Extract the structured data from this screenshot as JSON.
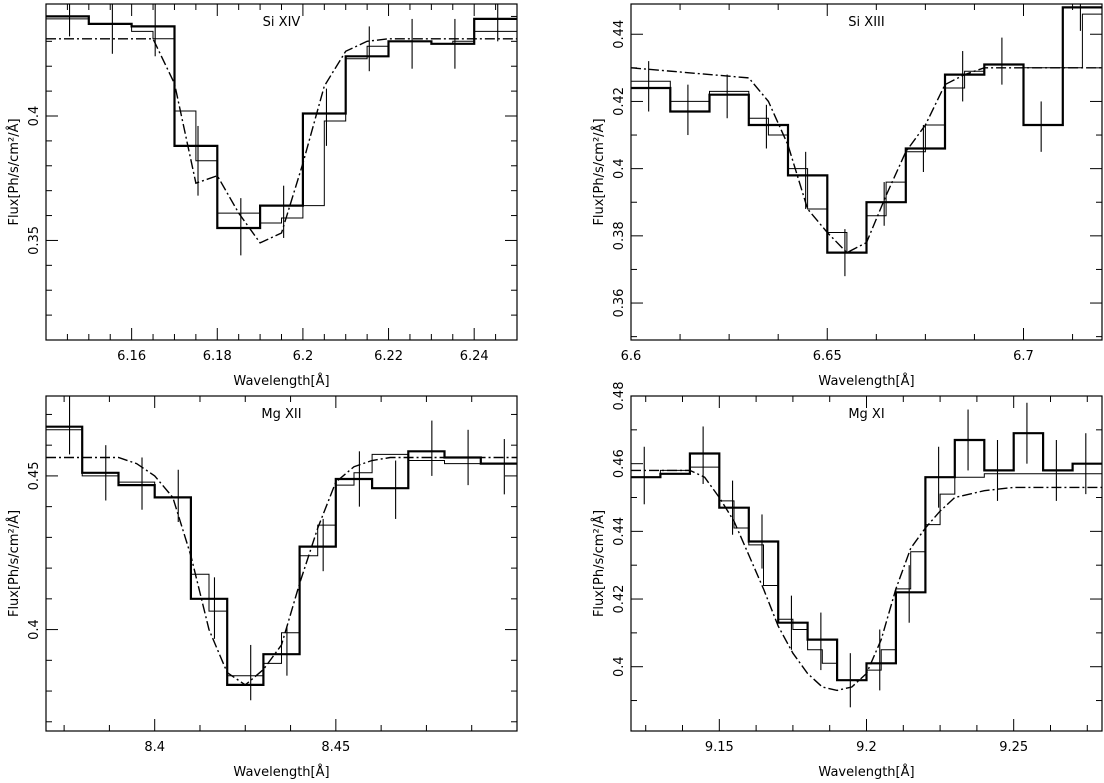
{
  "chart_data": [
    {
      "type": "line",
      "title": "Si XIV",
      "xlabel": "Wavelength[Å]",
      "ylabel": "Flux[Ph/s/cm²/Å]",
      "xlim": [
        6.14,
        6.25
      ],
      "ylim": [
        0.31,
        0.445
      ],
      "xticks": [
        6.16,
        6.18,
        6.2,
        6.22,
        6.24
      ],
      "xtick_labels": [
        "6.16",
        "6.18",
        "6.2",
        "6.22",
        "6.24"
      ],
      "yticks": [
        0.35,
        0.4
      ],
      "ytick_labels": [
        "0.35",
        "0.4"
      ],
      "series": [
        {
          "style": "dash-dot",
          "x": [
            6.14,
            6.165,
            6.17,
            6.175,
            6.18,
            6.185,
            6.19,
            6.195,
            6.2,
            6.205,
            6.21,
            6.215,
            6.22,
            6.25
          ],
          "y": [
            0.431,
            0.431,
            0.413,
            0.373,
            0.376,
            0.361,
            0.349,
            0.353,
            0.381,
            0.412,
            0.426,
            0.43,
            0.431,
            0.431
          ]
        },
        {
          "style": "thin-step",
          "x": [
            6.14,
            6.145,
            6.15,
            6.155,
            6.16,
            6.165,
            6.17,
            6.175,
            6.18,
            6.185,
            6.19,
            6.195,
            6.2,
            6.205,
            6.21,
            6.215,
            6.22,
            6.225,
            6.23,
            6.235,
            6.24,
            6.25
          ],
          "y": [
            0.439,
            0.439,
            0.437,
            0.437,
            0.434,
            0.431,
            0.402,
            0.382,
            0.361,
            0.361,
            0.357,
            0.359,
            0.364,
            0.398,
            0.423,
            0.428,
            0.43,
            0.43,
            0.429,
            0.43,
            0.434,
            0.434
          ]
        },
        {
          "style": "thick-step",
          "x": [
            6.14,
            6.15,
            6.16,
            6.17,
            6.18,
            6.19,
            6.2,
            6.21,
            6.22,
            6.23,
            6.24,
            6.25
          ],
          "y": [
            0.44,
            0.437,
            0.436,
            0.388,
            0.355,
            0.364,
            0.401,
            0.424,
            0.43,
            0.429,
            0.439,
            0.439
          ]
        }
      ],
      "errorbars": [
        {
          "x": 6.1455,
          "ylo": 0.432,
          "yhi": 0.447
        },
        {
          "x": 6.1555,
          "ylo": 0.425,
          "yhi": 0.447
        },
        {
          "x": 6.1655,
          "ylo": 0.424,
          "yhi": 0.446
        },
        {
          "x": 6.1755,
          "ylo": 0.368,
          "yhi": 0.396
        },
        {
          "x": 6.1855,
          "ylo": 0.344,
          "yhi": 0.367
        },
        {
          "x": 6.1955,
          "ylo": 0.351,
          "yhi": 0.372
        },
        {
          "x": 6.2055,
          "ylo": 0.388,
          "yhi": 0.411
        },
        {
          "x": 6.2155,
          "ylo": 0.418,
          "yhi": 0.436
        },
        {
          "x": 6.2255,
          "ylo": 0.419,
          "yhi": 0.439
        },
        {
          "x": 6.2355,
          "ylo": 0.419,
          "yhi": 0.439
        },
        {
          "x": 6.2455,
          "ylo": 0.43,
          "yhi": 0.447
        }
      ]
    },
    {
      "type": "line",
      "title": "Si XIII",
      "xlabel": "Wavelength[Å]",
      "ylabel": "Flux[Ph/s/cm²/Å]",
      "xlim": [
        6.6,
        6.72
      ],
      "ylim": [
        0.349,
        0.449
      ],
      "xticks": [
        6.6,
        6.65,
        6.7
      ],
      "xtick_labels": [
        "6.6",
        "6.65",
        "6.7"
      ],
      "yticks": [
        0.36,
        0.38,
        0.4,
        0.42,
        0.44
      ],
      "ytick_labels": [
        "0.36",
        "0.38",
        "0.4",
        "0.42",
        "0.44"
      ],
      "series": [
        {
          "style": "dash-dot",
          "x": [
            6.6,
            6.63,
            6.635,
            6.64,
            6.645,
            6.65,
            6.655,
            6.66,
            6.665,
            6.67,
            6.675,
            6.68,
            6.685,
            6.69,
            6.72
          ],
          "y": [
            0.43,
            0.427,
            0.42,
            0.407,
            0.388,
            0.381,
            0.375,
            0.378,
            0.392,
            0.405,
            0.413,
            0.425,
            0.428,
            0.43,
            0.43
          ]
        },
        {
          "style": "thin-step",
          "x": [
            6.6,
            6.605,
            6.61,
            6.615,
            6.62,
            6.625,
            6.63,
            6.635,
            6.64,
            6.645,
            6.65,
            6.655,
            6.66,
            6.665,
            6.67,
            6.675,
            6.68,
            6.685,
            6.69,
            6.695,
            6.7,
            6.71,
            6.715,
            6.72
          ],
          "y": [
            0.426,
            0.426,
            0.42,
            0.42,
            0.423,
            0.423,
            0.415,
            0.41,
            0.4,
            0.388,
            0.381,
            0.375,
            0.386,
            0.396,
            0.405,
            0.413,
            0.424,
            0.429,
            0.431,
            0.431,
            0.43,
            0.43,
            0.446,
            0.446
          ]
        },
        {
          "style": "thick-step",
          "x": [
            6.6,
            6.61,
            6.62,
            6.63,
            6.64,
            6.65,
            6.66,
            6.67,
            6.68,
            6.69,
            6.7,
            6.71,
            6.72
          ],
          "y": [
            0.424,
            0.417,
            0.422,
            0.413,
            0.398,
            0.375,
            0.39,
            0.406,
            0.428,
            0.431,
            0.413,
            0.448,
            0.448
          ]
        }
      ],
      "errorbars": [
        {
          "x": 6.6045,
          "ylo": 0.417,
          "yhi": 0.432
        },
        {
          "x": 6.6145,
          "ylo": 0.41,
          "yhi": 0.425
        },
        {
          "x": 6.6245,
          "ylo": 0.415,
          "yhi": 0.428
        },
        {
          "x": 6.6345,
          "ylo": 0.406,
          "yhi": 0.419
        },
        {
          "x": 6.6445,
          "ylo": 0.388,
          "yhi": 0.405
        },
        {
          "x": 6.6545,
          "ylo": 0.368,
          "yhi": 0.382
        },
        {
          "x": 6.6645,
          "ylo": 0.383,
          "yhi": 0.396
        },
        {
          "x": 6.6745,
          "ylo": 0.399,
          "yhi": 0.413
        },
        {
          "x": 6.6845,
          "ylo": 0.42,
          "yhi": 0.435
        },
        {
          "x": 6.6945,
          "ylo": 0.425,
          "yhi": 0.439
        },
        {
          "x": 6.7045,
          "ylo": 0.405,
          "yhi": 0.42
        },
        {
          "x": 6.7145,
          "ylo": 0.441,
          "yhi": 0.45
        }
      ]
    },
    {
      "type": "line",
      "title": "Mg XII",
      "xlabel": "Wavelength[Å]",
      "ylabel": "Flux[Ph/s/cm²/Å]",
      "xlim": [
        8.37,
        8.5
      ],
      "ylim": [
        0.367,
        0.476
      ],
      "xticks": [
        8.4,
        8.45
      ],
      "xtick_labels": [
        "8.4",
        "8.45"
      ],
      "yticks": [
        0.4,
        0.45
      ],
      "ytick_labels": [
        "0.4",
        "0.45"
      ],
      "series": [
        {
          "style": "dash-dot",
          "x": [
            8.37,
            8.385,
            8.39,
            8.395,
            8.4,
            8.405,
            8.41,
            8.415,
            8.42,
            8.425,
            8.43,
            8.435,
            8.44,
            8.445,
            8.45,
            8.455,
            8.46,
            8.465,
            8.5
          ],
          "y": [
            0.456,
            0.456,
            0.456,
            0.454,
            0.45,
            0.443,
            0.424,
            0.4,
            0.386,
            0.382,
            0.387,
            0.395,
            0.415,
            0.433,
            0.448,
            0.453,
            0.455,
            0.456,
            0.456
          ]
        },
        {
          "style": "thin-step",
          "x": [
            8.37,
            8.375,
            8.38,
            8.385,
            8.39,
            8.395,
            8.4,
            8.405,
            8.41,
            8.415,
            8.42,
            8.425,
            8.43,
            8.435,
            8.44,
            8.445,
            8.45,
            8.455,
            8.46,
            8.465,
            8.47,
            8.475,
            8.48,
            8.485,
            8.49,
            8.5
          ],
          "y": [
            0.465,
            0.465,
            0.45,
            0.45,
            0.448,
            0.448,
            0.443,
            0.443,
            0.418,
            0.406,
            0.385,
            0.385,
            0.389,
            0.399,
            0.424,
            0.434,
            0.447,
            0.451,
            0.457,
            0.457,
            0.455,
            0.455,
            0.454,
            0.454,
            0.454,
            0.454
          ]
        },
        {
          "style": "thick-step",
          "x": [
            8.37,
            8.38,
            8.39,
            8.4,
            8.41,
            8.42,
            8.43,
            8.44,
            8.45,
            8.46,
            8.47,
            8.48,
            8.49,
            8.5
          ],
          "y": [
            0.466,
            0.451,
            0.447,
            0.443,
            0.41,
            0.382,
            0.392,
            0.427,
            0.449,
            0.446,
            0.458,
            0.456,
            0.454,
            0.454
          ]
        }
      ],
      "errorbars": [
        {
          "x": 8.3765,
          "ylo": 0.457,
          "yhi": 0.476
        },
        {
          "x": 8.3865,
          "ylo": 0.442,
          "yhi": 0.46
        },
        {
          "x": 8.3965,
          "ylo": 0.439,
          "yhi": 0.456
        },
        {
          "x": 8.4065,
          "ylo": 0.435,
          "yhi": 0.452
        },
        {
          "x": 8.4165,
          "ylo": 0.397,
          "yhi": 0.417
        },
        {
          "x": 8.4265,
          "ylo": 0.377,
          "yhi": 0.395
        },
        {
          "x": 8.4365,
          "ylo": 0.385,
          "yhi": 0.401
        },
        {
          "x": 8.4465,
          "ylo": 0.419,
          "yhi": 0.436
        },
        {
          "x": 8.4565,
          "ylo": 0.44,
          "yhi": 0.458
        },
        {
          "x": 8.4665,
          "ylo": 0.436,
          "yhi": 0.455
        },
        {
          "x": 8.4765,
          "ylo": 0.45,
          "yhi": 0.468
        },
        {
          "x": 8.4865,
          "ylo": 0.447,
          "yhi": 0.465
        },
        {
          "x": 8.4965,
          "ylo": 0.444,
          "yhi": 0.462
        }
      ]
    },
    {
      "type": "line",
      "title": "Mg XI",
      "xlabel": "Wavelength[Å]",
      "ylabel": "Flux[Ph/s/cm²/Å]",
      "xlim": [
        9.12,
        9.28
      ],
      "ylim": [
        0.381,
        0.48
      ],
      "xticks": [
        9.15,
        9.2,
        9.25
      ],
      "xtick_labels": [
        "9.15",
        "9.2",
        "9.25"
      ],
      "yticks": [
        0.4,
        0.42,
        0.44,
        0.46,
        0.48
      ],
      "ytick_labels": [
        "0.4",
        "0.42",
        "0.44",
        "0.46",
        "0.48"
      ],
      "series": [
        {
          "style": "dash-dot",
          "x": [
            9.12,
            9.14,
            9.145,
            9.15,
            9.155,
            9.16,
            9.165,
            9.17,
            9.175,
            9.18,
            9.185,
            9.19,
            9.195,
            9.2,
            9.205,
            9.21,
            9.215,
            9.22,
            9.225,
            9.23,
            9.24,
            9.25,
            9.28
          ],
          "y": [
            0.458,
            0.458,
            0.456,
            0.45,
            0.443,
            0.433,
            0.423,
            0.412,
            0.404,
            0.398,
            0.394,
            0.393,
            0.394,
            0.398,
            0.408,
            0.423,
            0.435,
            0.441,
            0.446,
            0.45,
            0.452,
            0.453,
            0.453
          ]
        },
        {
          "style": "thin-step",
          "x": [
            9.12,
            9.125,
            9.13,
            9.135,
            9.14,
            9.145,
            9.15,
            9.155,
            9.16,
            9.165,
            9.17,
            9.175,
            9.18,
            9.185,
            9.19,
            9.195,
            9.2,
            9.205,
            9.21,
            9.215,
            9.22,
            9.225,
            9.23,
            9.235,
            9.24,
            9.245,
            9.25,
            9.28
          ],
          "y": [
            0.456,
            0.456,
            0.458,
            0.458,
            0.459,
            0.459,
            0.449,
            0.441,
            0.436,
            0.424,
            0.414,
            0.411,
            0.405,
            0.401,
            0.396,
            0.396,
            0.399,
            0.405,
            0.423,
            0.434,
            0.442,
            0.451,
            0.456,
            0.456,
            0.457,
            0.457,
            0.457,
            0.457
          ]
        },
        {
          "style": "thick-step",
          "x": [
            9.12,
            9.13,
            9.14,
            9.15,
            9.16,
            9.17,
            9.18,
            9.19,
            9.2,
            9.21,
            9.22,
            9.23,
            9.24,
            9.25,
            9.26,
            9.27,
            9.28
          ],
          "y": [
            0.456,
            0.457,
            0.463,
            0.447,
            0.437,
            0.413,
            0.408,
            0.396,
            0.401,
            0.422,
            0.456,
            0.467,
            0.458,
            0.469,
            0.458,
            0.46,
            0.46
          ]
        }
      ],
      "errorbars": [
        {
          "x": 9.1245,
          "ylo": 0.448,
          "yhi": 0.465
        },
        {
          "x": 9.1445,
          "ylo": 0.454,
          "yhi": 0.471
        },
        {
          "x": 9.1545,
          "ylo": 0.439,
          "yhi": 0.455
        },
        {
          "x": 9.1645,
          "ylo": 0.429,
          "yhi": 0.445
        },
        {
          "x": 9.1745,
          "ylo": 0.405,
          "yhi": 0.421
        },
        {
          "x": 9.1845,
          "ylo": 0.399,
          "yhi": 0.416
        },
        {
          "x": 9.1945,
          "ylo": 0.388,
          "yhi": 0.404
        },
        {
          "x": 9.2045,
          "ylo": 0.393,
          "yhi": 0.411
        },
        {
          "x": 9.2145,
          "ylo": 0.413,
          "yhi": 0.43
        },
        {
          "x": 9.2245,
          "ylo": 0.447,
          "yhi": 0.465
        },
        {
          "x": 9.2345,
          "ylo": 0.458,
          "yhi": 0.476
        },
        {
          "x": 9.2445,
          "ylo": 0.449,
          "yhi": 0.467
        },
        {
          "x": 9.2545,
          "ylo": 0.46,
          "yhi": 0.478
        },
        {
          "x": 9.2645,
          "ylo": 0.449,
          "yhi": 0.467
        },
        {
          "x": 9.2745,
          "ylo": 0.451,
          "yhi": 0.469
        }
      ]
    }
  ]
}
